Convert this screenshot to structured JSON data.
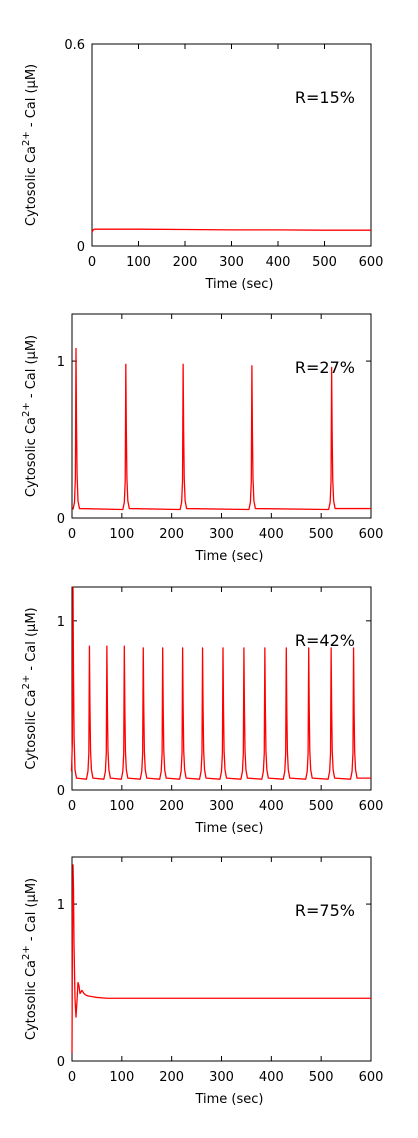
{
  "chart_data": [
    {
      "type": "line",
      "annotation": "R=15%",
      "xlabel": "Time (sec)",
      "ylabel_main": "Cytosolic Ca",
      "ylabel_sup": "2+",
      "ylabel_tail": " - Cal (μM)",
      "xlim": [
        0,
        600
      ],
      "ylim": [
        0,
        0.6
      ],
      "xticks": [
        0,
        100,
        200,
        300,
        400,
        500,
        600
      ],
      "xtick_labels": [
        "0",
        "100",
        "200",
        "300",
        "400",
        "500",
        "600"
      ],
      "yticks": [
        0,
        0.6
      ],
      "ytick_labels": [
        "0",
        "0.6"
      ],
      "series": [
        {
          "color": "#ff0000",
          "x": [
            0,
            2,
            5,
            10,
            50,
            100,
            200,
            300,
            400,
            500,
            600
          ],
          "y": [
            0.04,
            0.047,
            0.05,
            0.05,
            0.05,
            0.05,
            0.049,
            0.048,
            0.048,
            0.047,
            0.047
          ]
        }
      ]
    },
    {
      "type": "line",
      "annotation": "R=27%",
      "xlabel": "Time (sec)",
      "ylabel_main": "Cytosolic Ca",
      "ylabel_sup": "2+",
      "ylabel_tail": " - Cal (μM)",
      "xlim": [
        0,
        600
      ],
      "ylim": [
        0,
        1.3
      ],
      "xticks": [
        0,
        100,
        200,
        300,
        400,
        500,
        600
      ],
      "xtick_labels": [
        "0",
        "100",
        "200",
        "300",
        "400",
        "500",
        "600"
      ],
      "yticks": [
        0,
        1
      ],
      "ytick_labels": [
        "0",
        "1"
      ],
      "spikes": {
        "base": 0.05,
        "times": [
          8,
          108,
          223,
          361,
          521
        ],
        "peaks": [
          1.08,
          0.98,
          0.98,
          0.97,
          0.96
        ],
        "t_end": 600
      },
      "series": [
        {
          "color": "#ff0000"
        }
      ]
    },
    {
      "type": "line",
      "annotation": "R=42%",
      "xlabel": "Time (sec)",
      "ylabel_main": "Cytosolic Ca",
      "ylabel_sup": "2+",
      "ylabel_tail": " - Cal (μM)",
      "xlim": [
        0,
        600
      ],
      "ylim": [
        0,
        1.2
      ],
      "xticks": [
        0,
        100,
        200,
        300,
        400,
        500,
        600
      ],
      "xtick_labels": [
        "0",
        "100",
        "200",
        "300",
        "400",
        "500",
        "600"
      ],
      "yticks": [
        0,
        1
      ],
      "ytick_labels": [
        "0",
        "1"
      ],
      "spikes": {
        "base": 0.06,
        "times": [
          2,
          35,
          70,
          105,
          143,
          182,
          222,
          262,
          303,
          345,
          387,
          430,
          475,
          520,
          565
        ],
        "peaks": [
          1.2,
          0.85,
          0.85,
          0.85,
          0.84,
          0.84,
          0.84,
          0.84,
          0.84,
          0.84,
          0.84,
          0.84,
          0.84,
          0.84,
          0.84
        ],
        "t_end": 600
      },
      "series": [
        {
          "color": "#ff0000"
        }
      ]
    },
    {
      "type": "line",
      "annotation": "R=75%",
      "xlabel": "Time (sec)",
      "ylabel_main": "Cytosolic Ca",
      "ylabel_sup": "2+",
      "ylabel_tail": " - Cal (μM)",
      "xlim": [
        0,
        600
      ],
      "ylim": [
        0,
        1.3
      ],
      "xticks": [
        0,
        100,
        200,
        300,
        400,
        500,
        600
      ],
      "xtick_labels": [
        "0",
        "100",
        "200",
        "300",
        "400",
        "500",
        "600"
      ],
      "yticks": [
        0,
        1
      ],
      "ytick_labels": [
        "0",
        "1"
      ],
      "series": [
        {
          "color": "#ff0000",
          "x": [
            0,
            1,
            2,
            3,
            4,
            6,
            8,
            10,
            12,
            14,
            16,
            18,
            20,
            22,
            24,
            28,
            32,
            40,
            50,
            70,
            100,
            200,
            300,
            400,
            500,
            600
          ],
          "y": [
            0.05,
            0.9,
            1.25,
            1.1,
            0.75,
            0.4,
            0.28,
            0.38,
            0.5,
            0.48,
            0.43,
            0.44,
            0.45,
            0.44,
            0.43,
            0.42,
            0.415,
            0.41,
            0.405,
            0.4,
            0.4,
            0.4,
            0.4,
            0.4,
            0.4,
            0.4
          ]
        }
      ]
    }
  ]
}
